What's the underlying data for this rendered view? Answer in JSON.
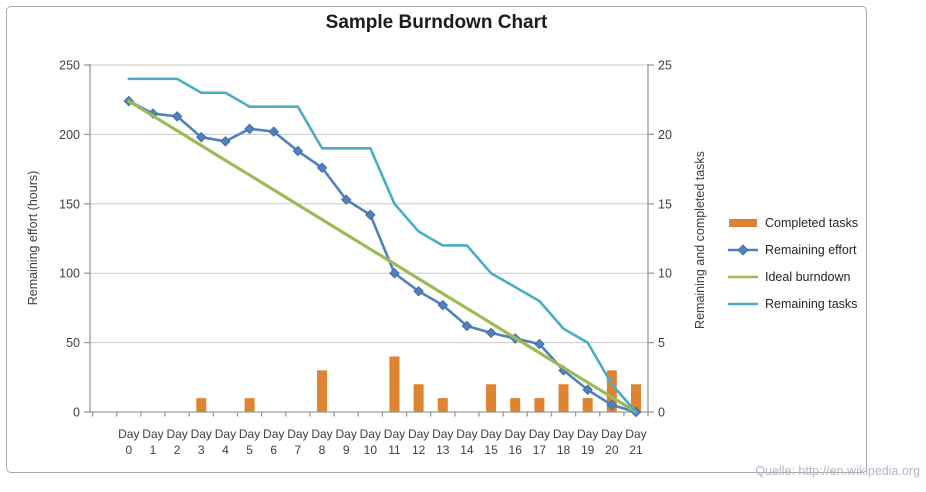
{
  "source_note": "Quelle: http://en.wikipedia.org",
  "chart_data": {
    "type": "combo",
    "title": "Sample Burndown Chart",
    "grid": true,
    "legend_position": "right",
    "categories": [
      "Day 0",
      "Day 1",
      "Day 2",
      "Day 3",
      "Day 4",
      "Day 5",
      "Day 6",
      "Day 7",
      "Day 8",
      "Day 9",
      "Day 10",
      "Day 11",
      "Day 12",
      "Day 13",
      "Day 14",
      "Day 15",
      "Day 16",
      "Day 17",
      "Day 18",
      "Day 19",
      "Day 20",
      "Day 21"
    ],
    "series": [
      {
        "name": "Completed tasks",
        "type": "bar",
        "axis": "right",
        "color": "#de8330",
        "values": [
          0,
          0,
          0,
          1,
          0,
          1,
          0,
          0,
          3,
          0,
          0,
          4,
          2,
          1,
          0,
          2,
          1,
          1,
          2,
          1,
          3,
          2
        ]
      },
      {
        "name": "Remaining effort",
        "type": "line",
        "axis": "left",
        "color": "#4f81bd",
        "marker": "diamond",
        "values": [
          224,
          215,
          213,
          198,
          195,
          204,
          202,
          188,
          176,
          153,
          142,
          100,
          87,
          77,
          62,
          57,
          53,
          49,
          30,
          16,
          5,
          0
        ]
      },
      {
        "name": "Ideal burndown",
        "type": "line",
        "axis": "left",
        "color": "#9bbb59",
        "values": [
          224,
          213.3,
          202.7,
          192,
          181.3,
          170.7,
          160,
          149.3,
          138.7,
          128,
          117.3,
          106.7,
          96,
          85.3,
          74.7,
          64,
          53.3,
          42.7,
          32,
          21.3,
          10.7,
          0
        ]
      },
      {
        "name": "Remaining tasks",
        "type": "line",
        "axis": "right",
        "color": "#4bacc6",
        "values": [
          24,
          24,
          24,
          23,
          23,
          22,
          22,
          22,
          19,
          19,
          19,
          15,
          13,
          12,
          12,
          10,
          9,
          8,
          6,
          5,
          2,
          0
        ]
      }
    ],
    "axes": {
      "left": {
        "label": "Remaining effort (hours)",
        "min": 0,
        "max": 250,
        "tick_values": [
          0,
          50,
          100,
          150,
          200,
          250
        ],
        "tick_labels": [
          "0",
          "50",
          "100",
          "150",
          "200",
          "250"
        ]
      },
      "right": {
        "label": "Remaining and completed tasks",
        "min": 0,
        "max": 25,
        "tick_values": [
          0,
          5,
          10,
          15,
          20,
          25
        ],
        "tick_labels": [
          "0",
          "5",
          "10",
          "15",
          "20",
          "25"
        ]
      }
    },
    "colors": {
      "gridline": "#c9c9c9",
      "axis_line": "#9a9a9a",
      "tick_text": "#3f3f3f",
      "title_text": "#1b1b1b"
    }
  }
}
